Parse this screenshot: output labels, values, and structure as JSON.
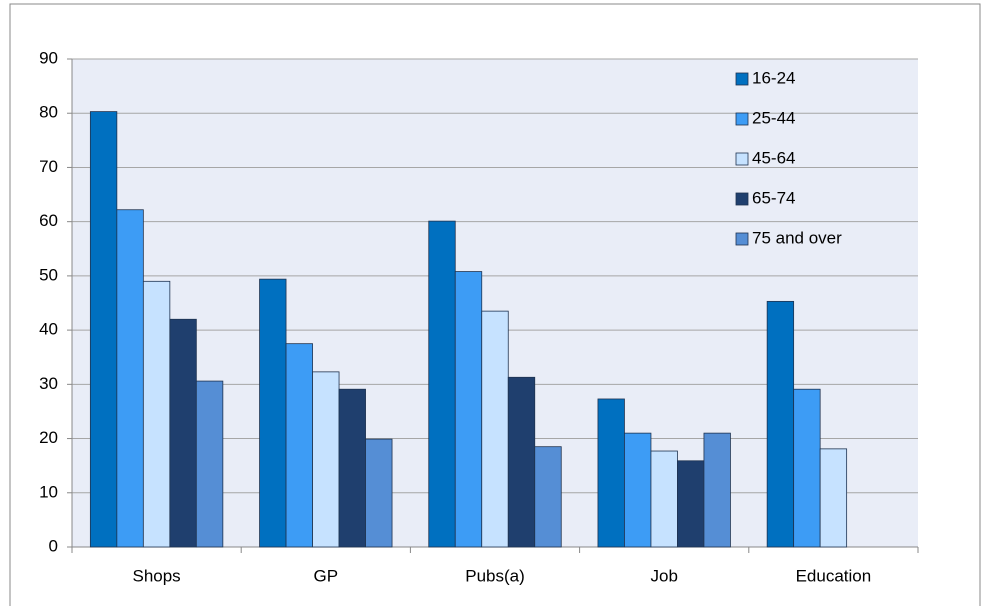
{
  "chart_data": {
    "type": "bar",
    "categories": [
      "Shops",
      "GP",
      "Pubs(a)",
      "Job",
      "Education"
    ],
    "series": [
      {
        "name": "16-24",
        "color": "#0070c0",
        "values": [
          80.3,
          49.4,
          60.1,
          27.3,
          45.3
        ]
      },
      {
        "name": "25-44",
        "color": "#3d9cf5",
        "values": [
          62.2,
          37.5,
          50.8,
          21,
          29.1
        ]
      },
      {
        "name": "45-64",
        "color": "#c6e2ff",
        "values": [
          49,
          32.3,
          43.5,
          17.7,
          18.1
        ]
      },
      {
        "name": "65-74",
        "color": "#1f3f6e",
        "values": [
          42,
          29.1,
          31.3,
          15.9,
          null
        ]
      },
      {
        "name": "75 and over",
        "color": "#558ed5",
        "values": [
          30.6,
          19.9,
          18.5,
          21,
          null
        ]
      }
    ],
    "ylim": [
      0,
      90
    ],
    "yticks": [
      0,
      10,
      20,
      30,
      40,
      50,
      60,
      70,
      80,
      90
    ],
    "grid": true,
    "legend": "top-right"
  }
}
